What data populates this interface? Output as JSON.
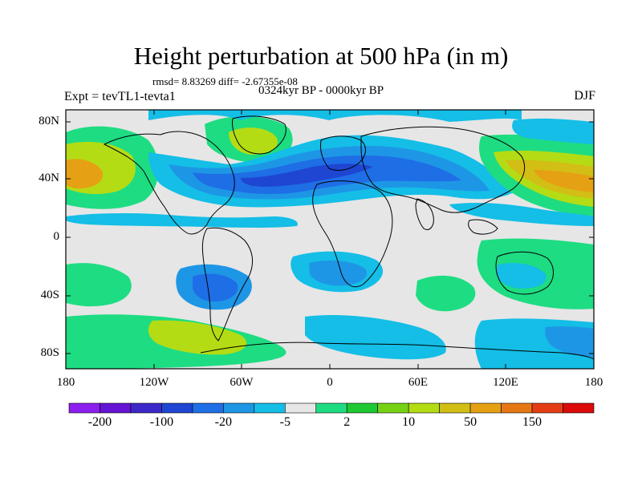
{
  "header": {
    "title": "Height perturbation at 500 hPa (in m)",
    "stats": "rmsd= 8.83269 diff= -2.67355e-08",
    "period": "0324kyr BP - 0000kyr BP",
    "experiment": "Expt = tevTL1-tevta1",
    "season": "DJF"
  },
  "axes": {
    "lat_ticks": [
      "80N",
      "40N",
      "0",
      "40S",
      "80S"
    ],
    "lon_ticks": [
      "180",
      "120W",
      "60W",
      "0",
      "60E",
      "120E",
      "180"
    ]
  },
  "colorbar": {
    "labels": [
      "-200",
      "-100",
      "-20",
      "-5",
      "2",
      "10",
      "50",
      "150"
    ],
    "colors": [
      "#8c1ef0",
      "#6414d2",
      "#3c28c8",
      "#1e46d2",
      "#1e6ee6",
      "#1e96e6",
      "#14bee6",
      "#e6e6e6",
      "#1edc82",
      "#1ec832",
      "#78d214",
      "#b4dc14",
      "#d2be14",
      "#e6a014",
      "#e67814",
      "#e63c14",
      "#dc0a0a"
    ]
  },
  "map_colors": {
    "neutral": "#e6e6e6",
    "cyan": "#14bee6",
    "light_blue": "#1e96e6",
    "blue": "#1e6ee6",
    "dark_blue": "#1e46d2",
    "green": "#1edc82",
    "bright_green": "#1ec832",
    "yellow_green": "#b4dc14",
    "gold": "#d2be14",
    "orange": "#e6a014",
    "coast": "#000000"
  }
}
